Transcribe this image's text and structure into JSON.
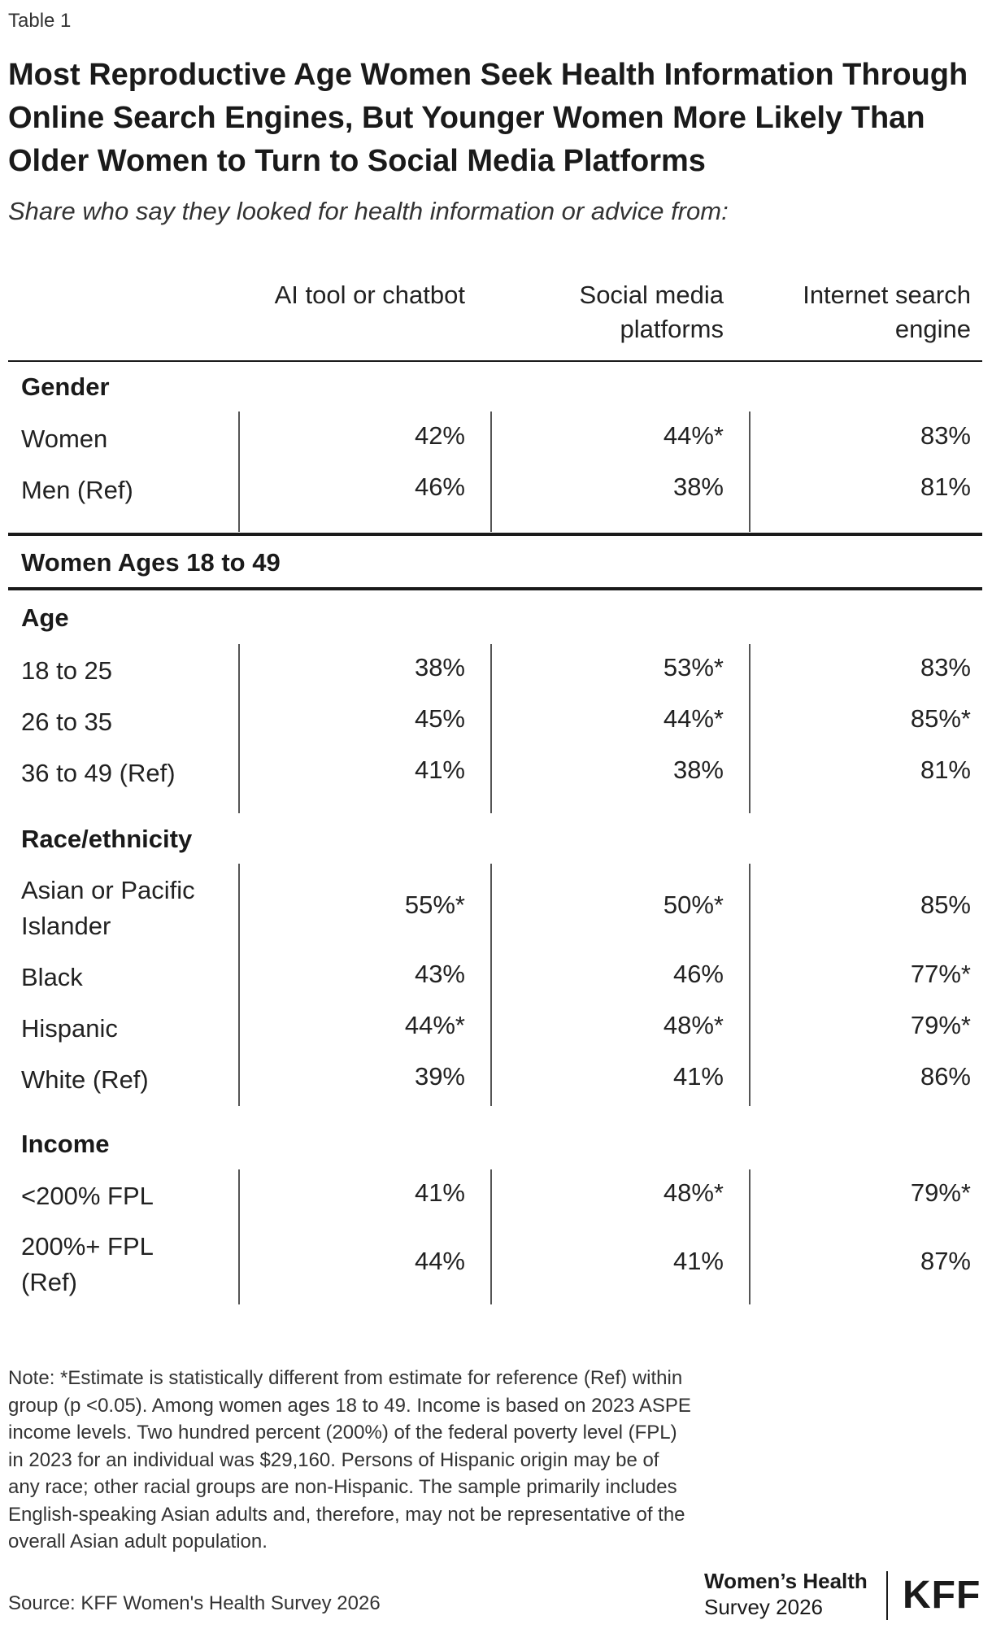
{
  "table_label": "Table 1",
  "title": "Most Reproductive Age Women Seek Health Information Through Online Search Engines, But Younger Women More Likely Than Older Women to Turn to Social Media Platforms",
  "subtitle": "Share who say they looked for health information or advice from:",
  "columns": [
    "AI tool or chatbot",
    "Social media platforms",
    "Internet search engine"
  ],
  "gender": {
    "heading": "Gender",
    "rows": [
      {
        "label": "Women",
        "values": [
          "42%",
          "44%*",
          "83%"
        ]
      },
      {
        "label": "Men (Ref)",
        "values": [
          "46%",
          "38%",
          "81%"
        ]
      }
    ]
  },
  "women_section": "Women Ages 18 to 49",
  "age": {
    "heading": "Age",
    "rows": [
      {
        "label": "18 to 25",
        "values": [
          "38%",
          "53%*",
          "83%"
        ]
      },
      {
        "label": "26 to 35",
        "values": [
          "45%",
          "44%*",
          "85%*"
        ]
      },
      {
        "label": "36 to 49 (Ref)",
        "values": [
          "41%",
          "38%",
          "81%"
        ]
      }
    ]
  },
  "race": {
    "heading": "Race/ethnicity",
    "rows": [
      {
        "label": "Asian or Pacific Islander",
        "values": [
          "55%*",
          "50%*",
          "85%"
        ]
      },
      {
        "label": "Black",
        "values": [
          "43%",
          "46%",
          "77%*"
        ]
      },
      {
        "label": "Hispanic",
        "values": [
          "44%*",
          "48%*",
          "79%*"
        ]
      },
      {
        "label": "White (Ref)",
        "values": [
          "39%",
          "41%",
          "86%"
        ]
      }
    ]
  },
  "income": {
    "heading": "Income",
    "rows": [
      {
        "label": "<200% FPL",
        "values": [
          "41%",
          "48%*",
          "79%*"
        ]
      },
      {
        "label": "200%+ FPL (Ref)",
        "values": [
          "44%",
          "41%",
          "87%"
        ]
      }
    ]
  },
  "note": "Note: *Estimate is statistically different from estimate for reference (Ref) within group (p <0.05). Among women ages 18 to 49. Income is based on 2023 ASPE income levels. Two hundred percent (200%) of the federal poverty level (FPL) in 2023 for an individual was $29,160. Persons of Hispanic origin may be of any race; other racial groups are non-Hispanic. The sample primarily includes English-speaking Asian adults and, therefore, may not be representative of the overall Asian adult population.",
  "source": "Source: KFF Women's Health Survey 2026",
  "brand": {
    "survey_line1": "Women’s Health",
    "survey_line2": "Survey 2026",
    "logo": "KFF"
  }
}
